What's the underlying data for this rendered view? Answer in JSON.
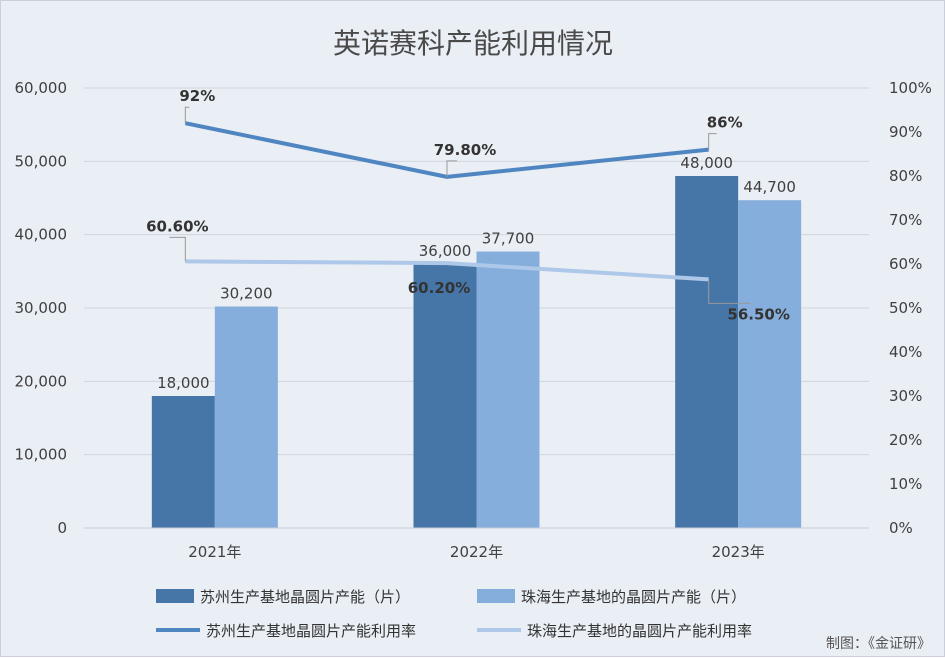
{
  "chart_data": {
    "type": "bar",
    "title": "英诺赛科产能利用情况",
    "categories": [
      "2021年",
      "2022年",
      "2023年"
    ],
    "y_left": {
      "min": 0,
      "max": 60000,
      "step": 10000,
      "tick_labels": [
        "0",
        "10,000",
        "20,000",
        "30,000",
        "40,000",
        "50,000",
        "60,000"
      ]
    },
    "y_right": {
      "min": 0,
      "max": 100,
      "step": 10,
      "tick_labels": [
        "0%",
        "10%",
        "20%",
        "30%",
        "40%",
        "50%",
        "60%",
        "70%",
        "80%",
        "90%",
        "100%"
      ]
    },
    "grid": true,
    "legend_position": "bottom",
    "series": [
      {
        "name": "苏州生产基地晶圆片产能（片）",
        "kind": "bar",
        "axis": "left",
        "color": "#4676a8",
        "values": [
          18000,
          36000,
          48000
        ],
        "labels": [
          "18,000",
          "36,000",
          "48,000"
        ]
      },
      {
        "name": "珠海生产基地的晶圆片产能（片）",
        "kind": "bar",
        "axis": "left",
        "color": "#85aedc",
        "values": [
          30200,
          37700,
          44700
        ],
        "labels": [
          "30,200",
          "37,700",
          "44,700"
        ]
      },
      {
        "name": "苏州生产基地晶圆片产能利用率",
        "kind": "line",
        "axis": "right",
        "color": "#4f86c1",
        "values": [
          92,
          79.8,
          86
        ],
        "labels": [
          "92%",
          "79.80%",
          "86%"
        ]
      },
      {
        "name": "珠海生产基地的晶圆片产能利用率",
        "kind": "line",
        "axis": "right",
        "color": "#adc8e8",
        "values": [
          60.6,
          60.2,
          56.5
        ],
        "labels": [
          "60.60%",
          "60.20%",
          "56.50%"
        ]
      }
    ],
    "source_note": "制图：《金证研》"
  }
}
